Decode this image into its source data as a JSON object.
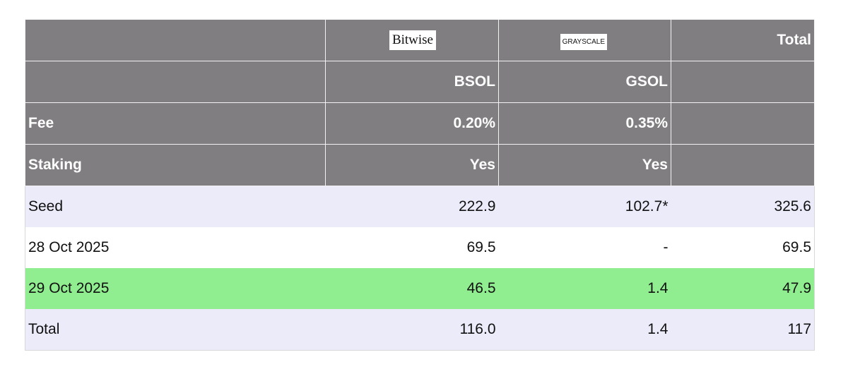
{
  "table": {
    "header": {
      "logos": [
        "Bitwise",
        "GRAYSCALE"
      ],
      "total": "Total"
    },
    "tickers": [
      "BSOL",
      "GSOL"
    ],
    "fee": {
      "label": "Fee",
      "values": [
        "0.20%",
        "0.35%"
      ]
    },
    "staking": {
      "label": "Staking",
      "values": [
        "Yes",
        "Yes"
      ]
    },
    "rows": [
      {
        "label": "Seed",
        "values": [
          "222.9",
          "102.7*",
          "325.6"
        ]
      },
      {
        "label": "28 Oct 2025",
        "values": [
          "69.5",
          "-",
          "69.5"
        ]
      },
      {
        "label": "29 Oct 2025",
        "values": [
          "46.5",
          "1.4",
          "47.9"
        ]
      },
      {
        "label": "Total",
        "values": [
          "116.0",
          "1.4",
          "117"
        ]
      }
    ]
  }
}
